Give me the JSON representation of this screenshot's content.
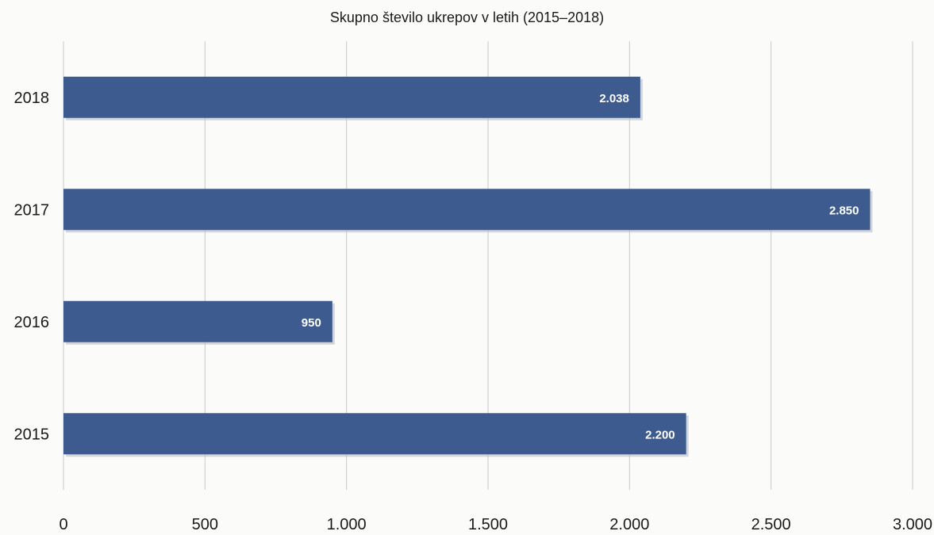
{
  "chart_data": {
    "type": "bar",
    "orientation": "horizontal",
    "title": "Skupno število ukrepov v letih (2015–2018)",
    "categories": [
      "2015",
      "2016",
      "2017",
      "2018"
    ],
    "values": [
      2200,
      950,
      2850,
      2038
    ],
    "data_labels": [
      "2.200",
      "950",
      "2.850",
      "2.038"
    ],
    "xlim": [
      0,
      3000
    ],
    "x_ticks": [
      0,
      500,
      1000,
      1500,
      2000,
      2500,
      3000
    ],
    "x_tick_labels": [
      "0",
      "500",
      "1.000",
      "1.500",
      "2.000",
      "2.500",
      "3.000"
    ],
    "xlabel": "",
    "ylabel": "",
    "grid": "vertical",
    "legend": "none",
    "bar_color": "#3d5b8e",
    "grid_color": "#c9c9c9"
  }
}
